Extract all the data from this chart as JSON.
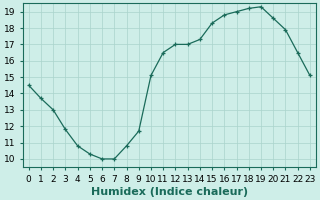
{
  "x": [
    0,
    1,
    2,
    3,
    4,
    5,
    6,
    7,
    8,
    9,
    10,
    11,
    12,
    13,
    14,
    15,
    16,
    17,
    18,
    19,
    20,
    21,
    22,
    23
  ],
  "y": [
    14.5,
    13.7,
    13.0,
    11.8,
    10.8,
    10.3,
    10.0,
    10.0,
    10.8,
    11.7,
    15.1,
    16.5,
    17.0,
    17.0,
    17.3,
    18.3,
    18.8,
    19.0,
    19.2,
    19.3,
    18.6,
    17.9,
    16.5,
    15.1
  ],
  "xlabel": "Humidex (Indice chaleur)",
  "ylim": [
    9.5,
    19.5
  ],
  "xlim": [
    -0.5,
    23.5
  ],
  "yticks": [
    10,
    11,
    12,
    13,
    14,
    15,
    16,
    17,
    18,
    19
  ],
  "xticks": [
    0,
    1,
    2,
    3,
    4,
    5,
    6,
    7,
    8,
    9,
    10,
    11,
    12,
    13,
    14,
    15,
    16,
    17,
    18,
    19,
    20,
    21,
    22,
    23
  ],
  "xtick_labels": [
    "0",
    "1",
    "2",
    "3",
    "4",
    "5",
    "6",
    "7",
    "8",
    "9",
    "10",
    "11",
    "12",
    "13",
    "14",
    "15",
    "16",
    "17",
    "18",
    "19",
    "20",
    "21",
    "22",
    "23"
  ],
  "line_color": "#1a6b5a",
  "marker": "+",
  "bg_color": "#ceeee8",
  "grid_color": "#aad4cc",
  "xlabel_fontsize": 8,
  "tick_fontsize": 6.5
}
